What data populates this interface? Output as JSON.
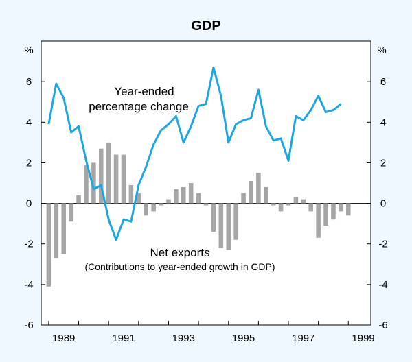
{
  "chart_data": {
    "type": "bar+line",
    "title": "GDP",
    "ylabel_left": "%",
    "ylabel_right": "%",
    "ylim": [
      -6,
      8
    ],
    "yticks": [
      -6,
      -4,
      -2,
      0,
      2,
      4,
      6
    ],
    "xlim": [
      1988.75,
      1999.75
    ],
    "xticks": [
      1989,
      1991,
      1993,
      1995,
      1997,
      1999
    ],
    "grid": false,
    "series": [
      {
        "name": "Year-ended percentage change",
        "type": "line",
        "color": "#1ea6e2",
        "x": [
          1989.0,
          1989.25,
          1989.5,
          1989.75,
          1990.0,
          1990.25,
          1990.5,
          1990.75,
          1991.0,
          1991.25,
          1991.5,
          1991.75,
          1992.0,
          1992.25,
          1992.5,
          1992.75,
          1993.0,
          1993.25,
          1993.5,
          1993.75,
          1994.0,
          1994.25,
          1994.5,
          1994.75,
          1995.0,
          1995.25,
          1995.5,
          1995.75,
          1996.0,
          1996.25,
          1996.5,
          1996.75,
          1997.0,
          1997.25,
          1997.5,
          1997.75,
          1998.0,
          1998.25,
          1998.5,
          1998.75
        ],
        "values": [
          3.9,
          5.9,
          5.2,
          3.5,
          3.8,
          2.1,
          0.7,
          0.9,
          -0.8,
          -1.8,
          -0.8,
          -0.9,
          0.9,
          1.8,
          2.9,
          3.6,
          3.9,
          4.3,
          3.0,
          3.8,
          4.8,
          4.9,
          6.7,
          5.3,
          3.0,
          3.9,
          4.1,
          4.2,
          5.6,
          3.8,
          3.1,
          3.2,
          2.1,
          4.3,
          4.1,
          4.6,
          5.3,
          4.5,
          4.6,
          4.9
        ]
      },
      {
        "name": "Net exports (Contributions to year-ended growth in GDP)",
        "type": "bar",
        "color": "#a6a6a6",
        "x": [
          1989.0,
          1989.25,
          1989.5,
          1989.75,
          1990.0,
          1990.25,
          1990.5,
          1990.75,
          1991.0,
          1991.25,
          1991.5,
          1991.75,
          1992.0,
          1992.25,
          1992.5,
          1992.75,
          1993.0,
          1993.25,
          1993.5,
          1993.75,
          1994.0,
          1994.25,
          1994.5,
          1994.75,
          1995.0,
          1995.25,
          1995.5,
          1995.75,
          1996.0,
          1996.25,
          1996.5,
          1996.75,
          1997.0,
          1997.25,
          1997.5,
          1997.75,
          1998.0,
          1998.25,
          1998.5,
          1998.75,
          1999.0
        ],
        "values": [
          -4.1,
          -2.7,
          -2.5,
          -0.9,
          0.4,
          1.9,
          2.0,
          2.7,
          3.0,
          2.4,
          2.4,
          0.9,
          0.5,
          -0.6,
          -0.4,
          -0.1,
          0.2,
          0.7,
          0.8,
          1.0,
          0.5,
          -0.1,
          -1.4,
          -2.2,
          -2.3,
          -1.8,
          0.5,
          1.1,
          1.5,
          0.8,
          -0.1,
          -0.4,
          -0.1,
          0.3,
          0.2,
          -0.4,
          -1.7,
          -1.1,
          -0.8,
          -0.4,
          -0.6
        ]
      }
    ],
    "annotations": {
      "line_label_1": "Year-ended",
      "line_label_2": "percentage change",
      "bar_label_1": "Net exports",
      "bar_label_2": "(Contributions to year-ended growth in GDP)"
    }
  }
}
